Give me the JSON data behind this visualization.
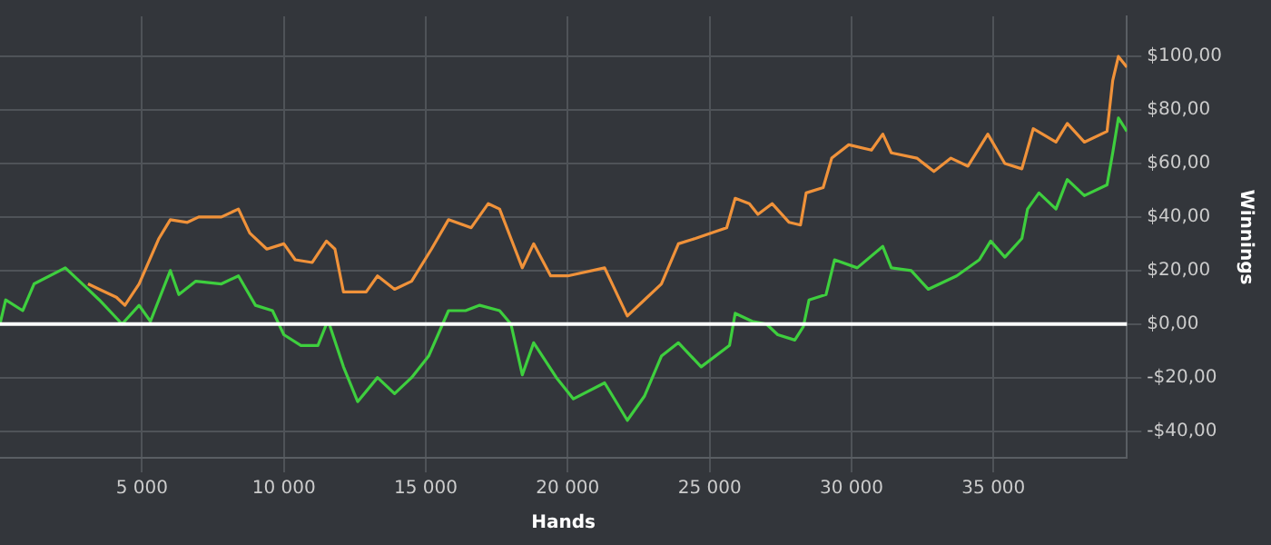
{
  "chart_data": {
    "type": "line",
    "xlabel": "Hands",
    "ylabel": "Winnings",
    "xlim": [
      0,
      39700
    ],
    "ylim": [
      -50,
      115
    ],
    "xticks": [
      {
        "value": 5000,
        "label": "5 000"
      },
      {
        "value": 10000,
        "label": "10 000"
      },
      {
        "value": 15000,
        "label": "15 000"
      },
      {
        "value": 20000,
        "label": "20 000"
      },
      {
        "value": 25000,
        "label": "25 000"
      },
      {
        "value": 30000,
        "label": "30 000"
      },
      {
        "value": 35000,
        "label": "35 000"
      }
    ],
    "yticks": [
      {
        "value": -40,
        "label": "-$40,00"
      },
      {
        "value": -20,
        "label": "-$20,00"
      },
      {
        "value": 0,
        "label": "$0,00"
      },
      {
        "value": 20,
        "label": "$20,00"
      },
      {
        "value": 40,
        "label": "$40,00"
      },
      {
        "value": 60,
        "label": "$60,00"
      },
      {
        "value": 80,
        "label": "$80,00"
      },
      {
        "value": 100,
        "label": "$100,00"
      }
    ],
    "grid": true,
    "legend": false,
    "marker": "none",
    "line_style": "solid",
    "ref_lines": [
      {
        "axis": "y",
        "value": 0,
        "label": null,
        "color": "#ffffff"
      }
    ],
    "series": [
      {
        "color": "#f0923a",
        "x": [
          3100,
          3500,
          4100,
          4400,
          4900,
          5600,
          6000,
          6600,
          7000,
          7800,
          8400,
          8800,
          9400,
          10000,
          10400,
          11000,
          11500,
          11800,
          12100,
          12900,
          13300,
          13900,
          14500,
          15200,
          15800,
          16600,
          17200,
          17600,
          18000,
          18400,
          18800,
          19400,
          20000,
          21300,
          22100,
          22700,
          23300,
          23900,
          24500,
          25600,
          25900,
          26400,
          26700,
          27200,
          27800,
          28200,
          28400,
          29000,
          29300,
          29900,
          30700,
          31100,
          31400,
          32300,
          32900,
          33500,
          34100,
          34800,
          35400,
          36000,
          36400,
          37200,
          37600,
          38200,
          39000,
          39200,
          39400,
          39700
        ],
        "values": [
          15,
          13,
          10,
          7,
          15,
          32,
          39,
          38,
          40,
          40,
          43,
          34,
          28,
          30,
          24,
          23,
          31,
          28,
          12,
          12,
          18,
          13,
          16,
          28,
          39,
          36,
          45,
          43,
          32,
          21,
          30,
          18,
          18,
          21,
          3,
          9,
          15,
          30,
          32,
          36,
          47,
          45,
          41,
          45,
          38,
          37,
          49,
          51,
          62,
          67,
          65,
          71,
          64,
          62,
          57,
          62,
          59,
          71,
          60,
          58,
          73,
          68,
          75,
          68,
          72,
          91,
          100,
          96
        ]
      },
      {
        "color": "#3ecf3e",
        "x": [
          0,
          200,
          800,
          1200,
          2300,
          3100,
          3500,
          4300,
          4900,
          5300,
          6000,
          6300,
          6900,
          7800,
          8400,
          9000,
          9600,
          10000,
          10600,
          11200,
          11500,
          11600,
          12100,
          12600,
          13300,
          13900,
          14500,
          15100,
          15800,
          16400,
          16900,
          17600,
          18000,
          18400,
          18800,
          19600,
          20200,
          21300,
          22100,
          22700,
          23300,
          23900,
          24700,
          25700,
          25900,
          26500,
          27000,
          27400,
          28000,
          28300,
          28500,
          29100,
          29400,
          30200,
          31100,
          31400,
          32100,
          32700,
          33700,
          34500,
          34900,
          35400,
          36000,
          36200,
          36600,
          37200,
          37600,
          38200,
          39000,
          39200,
          39400,
          39700
        ],
        "values": [
          0,
          9,
          5,
          15,
          21,
          13,
          9,
          0,
          7,
          1,
          20,
          11,
          16,
          15,
          18,
          7,
          5,
          -4,
          -8,
          -8,
          0,
          0,
          -16,
          -29,
          -20,
          -26,
          -20,
          -12,
          5,
          5,
          7,
          5,
          0,
          -19,
          -7,
          -20,
          -28,
          -22,
          -36,
          -27,
          -12,
          -7,
          -16,
          -8,
          4,
          1,
          0,
          -4,
          -6,
          -1,
          9,
          11,
          24,
          21,
          29,
          21,
          20,
          13,
          18,
          24,
          31,
          25,
          32,
          43,
          49,
          43,
          54,
          48,
          52,
          64,
          77,
          72
        ]
      }
    ]
  }
}
